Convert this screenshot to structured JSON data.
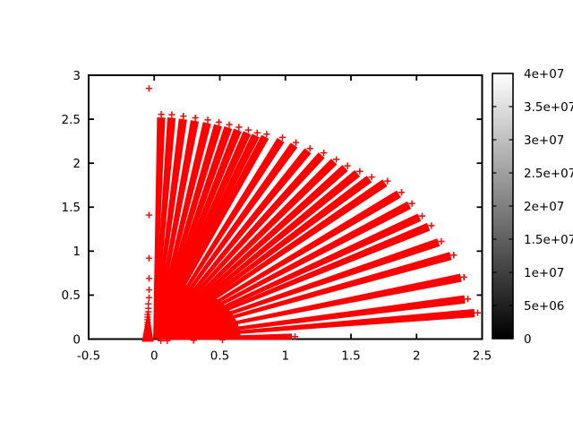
{
  "chart_data": {
    "type": "scatter",
    "title": "",
    "xlabel": "",
    "ylabel": "",
    "marker": "plus",
    "series_color": "#ff0000",
    "axis_color": "#000000",
    "background_color": "#ffffff",
    "xlim": [
      -0.5,
      2.5
    ],
    "ylim": [
      0,
      3
    ],
    "x_ticks": [
      {
        "v": -0.5,
        "label": "-0.5"
      },
      {
        "v": 0,
        "label": "0"
      },
      {
        "v": 0.5,
        "label": "0.5"
      },
      {
        "v": 1,
        "label": "1"
      },
      {
        "v": 1.5,
        "label": "1.5"
      },
      {
        "v": 2,
        "label": "2"
      },
      {
        "v": 2.5,
        "label": "2.5"
      }
    ],
    "y_ticks": [
      {
        "v": 0,
        "label": "0"
      },
      {
        "v": 0.5,
        "label": "0.5"
      },
      {
        "v": 1,
        "label": "1"
      },
      {
        "v": 1.5,
        "label": "1.5"
      },
      {
        "v": 2,
        "label": "2"
      },
      {
        "v": 2.5,
        "label": "2.5"
      },
      {
        "v": 3,
        "label": "3"
      }
    ],
    "rays": [
      {
        "angle": 88.8,
        "r": 2.52
      },
      {
        "angle": 87.0,
        "r": 2.52
      },
      {
        "angle": 85.0,
        "r": 2.51
      },
      {
        "angle": 82.9,
        "r": 2.5
      },
      {
        "angle": 80.7,
        "r": 2.49
      },
      {
        "angle": 78.7,
        "r": 2.48
      },
      {
        "angle": 76.8,
        "r": 2.47
      },
      {
        "angle": 75.0,
        "r": 2.46
      },
      {
        "angle": 73.2,
        "r": 2.45
      },
      {
        "angle": 71.5,
        "r": 2.44
      },
      {
        "angle": 69.8,
        "r": 2.45
      },
      {
        "angle": 66.9,
        "r": 2.46
      },
      {
        "angle": 64.2,
        "r": 2.45
      },
      {
        "angle": 61.3,
        "r": 2.44
      },
      {
        "angle": 58.6,
        "r": 2.45
      },
      {
        "angle": 55.8,
        "r": 2.44
      },
      {
        "angle": 53.2,
        "r": 2.43
      },
      {
        "angle": 50.6,
        "r": 2.44
      },
      {
        "angle": 48.0,
        "r": 2.45
      },
      {
        "angle": 45.3,
        "r": 2.5
      },
      {
        "angle": 41.5,
        "r": 2.49
      },
      {
        "angle": 38.1,
        "r": 2.47
      },
      {
        "angle": 34.4,
        "r": 2.45
      },
      {
        "angle": 31.4,
        "r": 2.45
      },
      {
        "angle": 26.9,
        "r": 2.43
      },
      {
        "angle": 22.7,
        "r": 2.45
      },
      {
        "angle": 16.6,
        "r": 2.44
      },
      {
        "angle": 10.8,
        "r": 2.41
      },
      {
        "angle": 6.9,
        "r": 2.46
      },
      {
        "angle": 1.5,
        "r": 1.05
      }
    ],
    "core_blob": {
      "cx": 0,
      "cy": 0,
      "radius": 0.66,
      "angle_start": 0,
      "angle_end": 90
    },
    "spike": {
      "base_x1": -0.095,
      "base_x2": -0.005,
      "base_y": -0.03,
      "apex_x": -0.045,
      "apex_y": 0.34
    },
    "isolated_points": [
      {
        "x": -0.04,
        "y": 2.85
      },
      {
        "x": -0.04,
        "y": 1.41
      },
      {
        "x": -0.04,
        "y": 0.92
      },
      {
        "x": -0.04,
        "y": 0.69
      },
      {
        "x": -0.04,
        "y": 0.56
      },
      {
        "x": -0.04,
        "y": 0.47
      },
      {
        "x": -0.045,
        "y": 0.4
      },
      {
        "x": -0.045,
        "y": 0.35
      },
      {
        "x": -0.045,
        "y": 0.31
      },
      {
        "x": -0.05,
        "y": 0.28
      },
      {
        "x": -0.05,
        "y": 0.25
      },
      {
        "x": -0.05,
        "y": 0.22
      },
      {
        "x": -0.05,
        "y": 0.19
      },
      {
        "x": -0.05,
        "y": 0.165
      },
      {
        "x": -0.05,
        "y": 0.14
      },
      {
        "x": -0.05,
        "y": 0.115
      },
      {
        "x": -0.055,
        "y": 0.09
      },
      {
        "x": -0.055,
        "y": 0.065
      },
      {
        "x": -0.055,
        "y": 0.04
      },
      {
        "x": -0.055,
        "y": 0.015
      },
      {
        "x": 0.05,
        "y": -0.02
      },
      {
        "x": 0.1,
        "y": -0.02
      },
      {
        "x": 0.3,
        "y": -0.015
      },
      {
        "x": 0.52,
        "y": -0.01
      }
    ],
    "colorbar": {
      "orientation": "vertical",
      "min": 0,
      "max": 40000000,
      "bottom_color": "#000000",
      "top_color": "#ffffff",
      "labels_top_to_bottom": [
        "4e+07",
        "3.5e+07",
        "3e+07",
        "2.5e+07",
        "2e+07",
        "1.5e+07",
        "1e+07",
        "5e+06",
        "0"
      ]
    },
    "legend": null,
    "grid": false
  }
}
